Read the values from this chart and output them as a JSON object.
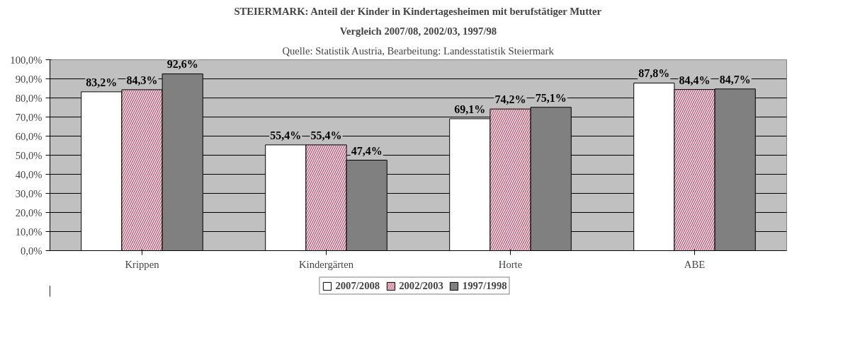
{
  "chart_data": {
    "type": "bar",
    "title": "STEIERMARK: Anteil der Kinder in Kindertagesheimen mit berufstätiger Mutter",
    "subtitle": "Vergleich 2007/08, 2002/03, 1997/98",
    "annotations": [
      "Quelle: Statistik Austria, Bearbeitung: Landesstatistik Steiermark"
    ],
    "categories": [
      "Krippen",
      "Kindergärten",
      "Horte",
      "ABE"
    ],
    "series": [
      {
        "name": "2007/2008",
        "color": "#ffffff",
        "values": [
          83.2,
          55.4,
          69.1,
          87.8
        ],
        "value_labels": [
          "83,2%",
          "55,4%",
          "69,1%",
          "87,8%"
        ]
      },
      {
        "name": "2002/2003",
        "color": "#c0607a",
        "values": [
          84.3,
          55.4,
          74.2,
          84.4
        ],
        "value_labels": [
          "84,3%",
          "55,4%",
          "74,2%",
          "84,4%"
        ]
      },
      {
        "name": "1997/1998",
        "color": "#808080",
        "values": [
          92.6,
          47.4,
          75.1,
          84.7
        ],
        "value_labels": [
          "92,6%",
          "47,4%",
          "75,1%",
          "84,7%"
        ]
      }
    ],
    "ylim": [
      0,
      100
    ],
    "yticks": [
      {
        "value": 0,
        "label": "0,0%"
      },
      {
        "value": 10,
        "label": "10,0%"
      },
      {
        "value": 20,
        "label": "20,0%"
      },
      {
        "value": 30,
        "label": "30,0%"
      },
      {
        "value": 40,
        "label": "40,0%"
      },
      {
        "value": 50,
        "label": "50,0%"
      },
      {
        "value": 60,
        "label": "60,0%"
      },
      {
        "value": 70,
        "label": "70,0%"
      },
      {
        "value": 80,
        "label": "80,0%"
      },
      {
        "value": 90,
        "label": "90,0%"
      },
      {
        "value": 100,
        "label": "100,0%"
      }
    ],
    "grid": "y",
    "legend": "bottom"
  }
}
